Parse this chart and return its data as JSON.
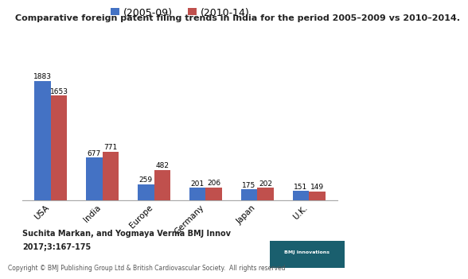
{
  "title": "Comparative foreign patent filing trends in India for the period 2005–2009 vs 2010–2014.",
  "categories": [
    "USA",
    "India",
    "Europe",
    "Germany",
    "Japan",
    "U.K."
  ],
  "series": [
    {
      "label": "(2005-09)",
      "color": "#4472C4",
      "values": [
        1883,
        677,
        259,
        201,
        175,
        151
      ]
    },
    {
      "label": "(2010-14)",
      "color": "#C0504D",
      "values": [
        1653,
        771,
        482,
        206,
        202,
        149
      ]
    }
  ],
  "ylim": [
    0,
    2200
  ],
  "bar_width": 0.32,
  "footnote_line1": "Suchita Markan, and Yogmaya Verma BMJ Innov",
  "footnote_line2": "2017;3:167-175",
  "copyright": "Copyright © BMJ Publishing Group Ltd & British Cardiovascular Society.  All rights reserved",
  "background_color": "#FFFFFF",
  "legend_fontsize": 9,
  "title_fontsize": 8,
  "annotation_fontsize": 6.5,
  "tick_fontsize": 7.5,
  "footnote_fontsize": 7,
  "copyright_fontsize": 5.5,
  "logo_color": "#1a5f6e"
}
